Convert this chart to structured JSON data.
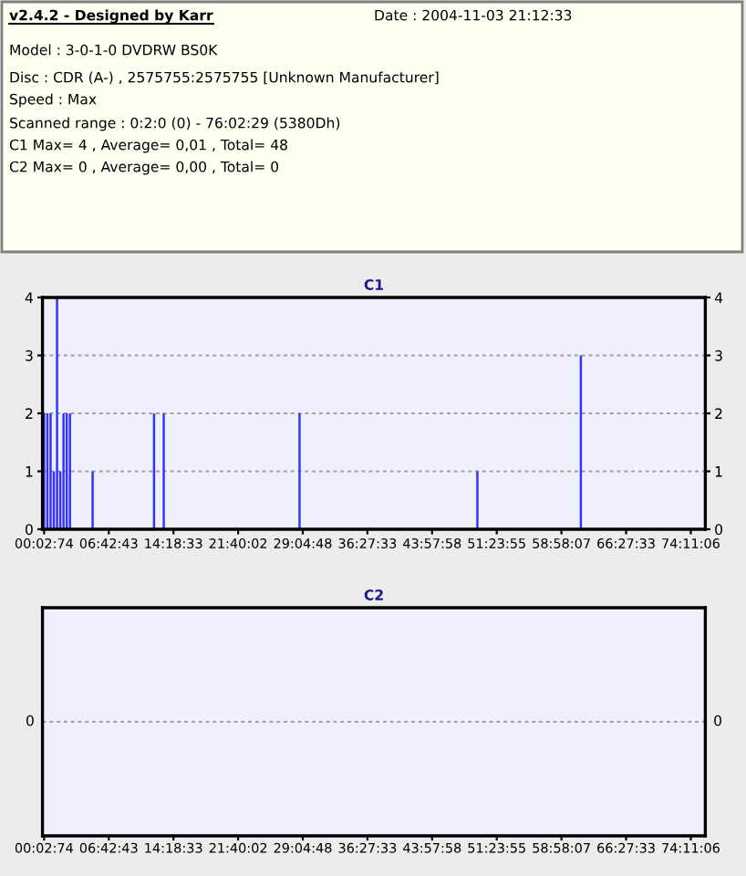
{
  "chart_data": [
    {
      "type": "other",
      "annotations": [
        "v2.4.2 - Designed by Karr",
        "Date : 2004-11-03 21:12:33",
        "Model : 3-0-1-0 DVDRW BS0K",
        "Disc : CDR (A-) , 2575755:2575755 [Unknown Manufacturer]",
        "Speed : Max",
        "Scanned range : 0:2:0 (0) - 76:02:29 (5380Dh)",
        "C1 Max= 4 , Average= 0,01 , Total= 48",
        "C2 Max= 0 , Average= 0,00 , Total= 0"
      ]
    },
    {
      "type": "bar",
      "title": "C1",
      "color": "#3333ff",
      "grid": "y",
      "categories": [
        "00:02:74",
        null,
        null,
        null,
        null,
        null,
        null,
        null,
        null,
        null,
        null,
        null,
        null,
        null,
        null,
        null,
        null,
        null,
        null,
        null,
        "06:42:43",
        null,
        null,
        null,
        null,
        null,
        null,
        null,
        null,
        null,
        null,
        null,
        null,
        null,
        null,
        null,
        null,
        null,
        null,
        null,
        "14:18:33",
        null,
        null,
        null,
        null,
        null,
        null,
        null,
        null,
        null,
        null,
        null,
        null,
        null,
        null,
        null,
        null,
        null,
        null,
        null,
        "21:40:02",
        null,
        null,
        null,
        null,
        null,
        null,
        null,
        null,
        null,
        null,
        null,
        null,
        null,
        null,
        null,
        null,
        null,
        null,
        null,
        "29:04:48",
        null,
        null,
        null,
        null,
        null,
        null,
        null,
        null,
        null,
        null,
        null,
        null,
        null,
        null,
        null,
        null,
        null,
        null,
        null,
        "36:27:33",
        null,
        null,
        null,
        null,
        null,
        null,
        null,
        null,
        null,
        null,
        null,
        null,
        null,
        null,
        null,
        null,
        null,
        null,
        null,
        "43:57:58",
        null,
        null,
        null,
        null,
        null,
        null,
        null,
        null,
        null,
        null,
        null,
        null,
        null,
        null,
        null,
        null,
        null,
        null,
        null,
        "51:23:55",
        null,
        null,
        null,
        null,
        null,
        null,
        null,
        null,
        null,
        null,
        null,
        null,
        null,
        null,
        null,
        null,
        null,
        null,
        null,
        "58:58:07",
        null,
        null,
        null,
        null,
        null,
        null,
        null,
        null,
        null,
        null,
        null,
        null,
        null,
        null,
        null,
        null,
        null,
        null,
        null,
        "66:27:33",
        null,
        null,
        null,
        null,
        null,
        null,
        null,
        null,
        null,
        null,
        null,
        null,
        null,
        null,
        null,
        null,
        null,
        null,
        null,
        "74:11:06",
        null,
        null,
        null,
        null
      ],
      "values": [
        2,
        2,
        2,
        1,
        4,
        1,
        2,
        2,
        2,
        0,
        0,
        0,
        0,
        0,
        0,
        1,
        0,
        0,
        0,
        0,
        0,
        0,
        0,
        0,
        0,
        0,
        0,
        0,
        0,
        0,
        0,
        0,
        0,
        0,
        2,
        0,
        0,
        2,
        0,
        0,
        0,
        0,
        0,
        0,
        0,
        0,
        0,
        0,
        0,
        0,
        0,
        0,
        0,
        0,
        0,
        0,
        0,
        0,
        0,
        0,
        0,
        0,
        0,
        0,
        0,
        0,
        0,
        0,
        0,
        0,
        0,
        0,
        0,
        0,
        0,
        0,
        0,
        0,
        0,
        2,
        0,
        0,
        0,
        0,
        0,
        0,
        0,
        0,
        0,
        0,
        0,
        0,
        0,
        0,
        0,
        0,
        0,
        0,
        0,
        0,
        0,
        0,
        0,
        0,
        0,
        0,
        0,
        0,
        0,
        0,
        0,
        0,
        0,
        0,
        0,
        0,
        0,
        0,
        0,
        0,
        0,
        0,
        0,
        0,
        0,
        0,
        0,
        0,
        0,
        0,
        0,
        0,
        0,
        0,
        1,
        0,
        0,
        0,
        0,
        0,
        0,
        0,
        0,
        0,
        0,
        0,
        0,
        0,
        0,
        0,
        0,
        0,
        0,
        0,
        0,
        0,
        0,
        0,
        0,
        0,
        0,
        0,
        0,
        0,
        0,
        0,
        3,
        0,
        0,
        0,
        0,
        0,
        0,
        0,
        0,
        0,
        0,
        0,
        0,
        0,
        0,
        0,
        0,
        0,
        0,
        0,
        0,
        0,
        0,
        0,
        0,
        0,
        0,
        0,
        0,
        0,
        0,
        0,
        0,
        0,
        0,
        0,
        0,
        0,
        0
      ],
      "ylim": [
        0,
        4
      ],
      "yticks": [
        0,
        1,
        2,
        3,
        4
      ],
      "y2lim": [
        0,
        4
      ],
      "y2ticks": [
        0,
        1,
        2,
        3,
        4
      ]
    },
    {
      "type": "other",
      "title": "C2",
      "annotations": [
        "0",
        "0",
        "00:02:74",
        "06:42:43",
        "14:18:33",
        "21:40:02",
        "29:04:48",
        "36:27:33",
        "43:57:58",
        "51:23:55",
        "58:58:07",
        "66:27:33",
        "74:11:06"
      ]
    }
  ]
}
